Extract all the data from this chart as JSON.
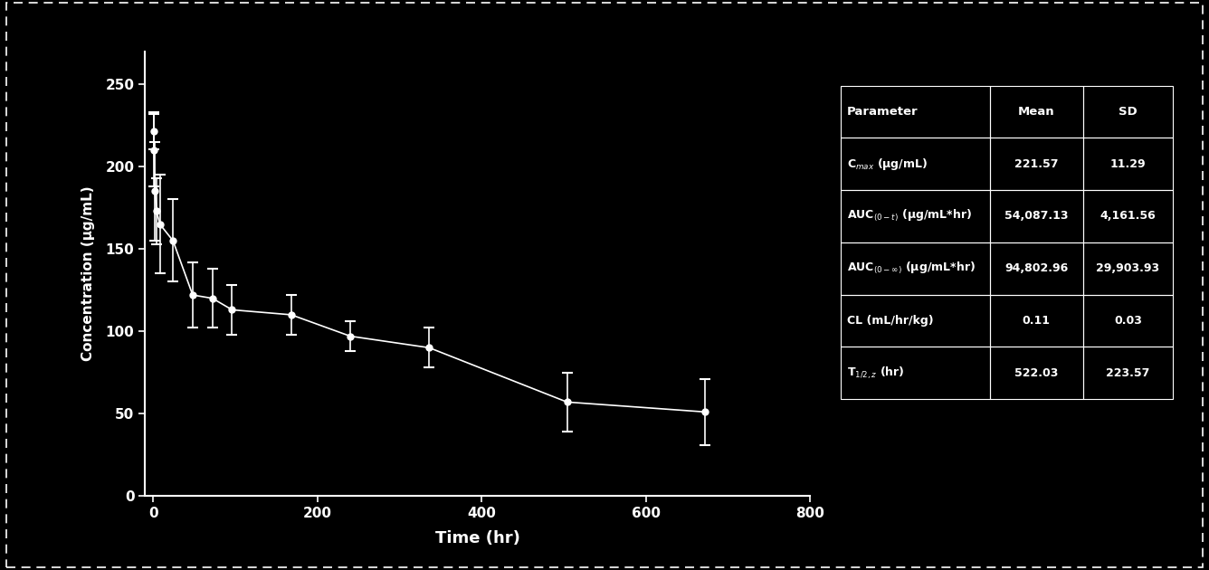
{
  "time_points": [
    0.5,
    1,
    2,
    4,
    8,
    24,
    48,
    72,
    96,
    168,
    240,
    336,
    504,
    672
  ],
  "concentration_mean": [
    221.57,
    210,
    185,
    173,
    165,
    155,
    122,
    120,
    113,
    110,
    97,
    90,
    57,
    51
  ],
  "concentration_sd": [
    11.29,
    22,
    30,
    20,
    30,
    25,
    20,
    18,
    15,
    12,
    9,
    12,
    18,
    20
  ],
  "xlabel": "Time (hr)",
  "ylabel": "Concentration (μg/mL)",
  "xlim": [
    -10,
    800
  ],
  "ylim": [
    0,
    270
  ],
  "xticks": [
    0,
    200,
    400,
    600,
    800
  ],
  "yticks": [
    0,
    50,
    100,
    150,
    200,
    250
  ],
  "bg_color": "#000000",
  "axes_color": "#ffffff",
  "line_color": "#ffffff",
  "marker_color": "#ffffff",
  "text_color": "#ffffff",
  "table_bg": "#000000",
  "table_border_color": "#ffffff",
  "table_headers": [
    "Parameter",
    "Mean",
    "SD"
  ],
  "table_rows": [
    [
      "C$_{max}$ (μg/mL)",
      "221.57",
      "11.29"
    ],
    [
      "AUC$_{(0-t)}$ (μg/mL*hr)",
      "54,087.13",
      "4,161.56"
    ],
    [
      "AUC$_{(0-∞)}$ (μg/mL*hr)",
      "94,802.96",
      "29,903.93"
    ],
    [
      "CL (mL/hr/kg)",
      "0.11",
      "0.03"
    ],
    [
      "T$_{1/2,z}$ (hr)",
      "522.03",
      "223.57"
    ]
  ],
  "outer_border_color": "#ffffff",
  "outer_border_style": "dashed"
}
